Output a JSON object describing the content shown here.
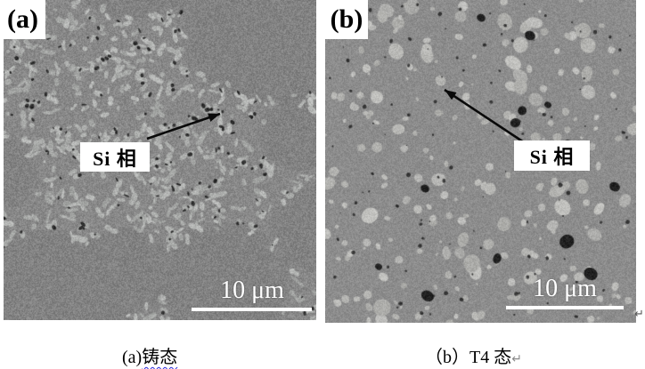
{
  "figure": {
    "panels": [
      {
        "id": "a",
        "label": "(a)",
        "annotation": "Si 相",
        "scale_label": "10 μm"
      },
      {
        "id": "b",
        "label": "(b)",
        "annotation": "Si 相",
        "scale_label": "10 μm"
      }
    ],
    "captions": {
      "a_prefix": "(a)",
      "a_term": "铸态",
      "b_text": "（b）T4 态",
      "b_return_mark": "↵"
    },
    "corner_return_mark": "↵",
    "colors": {
      "matrix_a": "#8a8a8a",
      "matrix_b": "#8f8f8f",
      "dendrite": "#838383",
      "particle_light": "#b6b6b2",
      "speck_dark": "#141414",
      "scale_white": "#ffffff",
      "squiggle_blue": "#2b2bdc",
      "annotation_text": "#000000"
    }
  }
}
